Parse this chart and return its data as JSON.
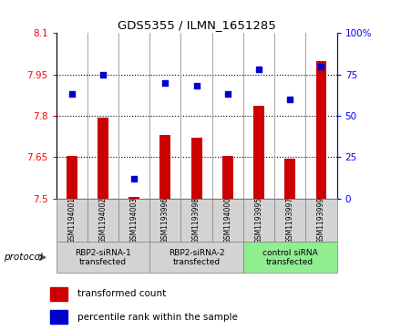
{
  "title": "GDS5355 / ILMN_1651285",
  "samples": [
    "GSM1194001",
    "GSM1194002",
    "GSM1194003",
    "GSM1193996",
    "GSM1193998",
    "GSM1194000",
    "GSM1193995",
    "GSM1193997",
    "GSM1193999"
  ],
  "bar_values": [
    7.655,
    7.795,
    7.505,
    7.73,
    7.72,
    7.655,
    7.835,
    7.645,
    8.0
  ],
  "dot_values": [
    63,
    75,
    12,
    70,
    68,
    63,
    78,
    60,
    80
  ],
  "ylim_left": [
    7.5,
    8.1
  ],
  "ylim_right": [
    0,
    100
  ],
  "yticks_left": [
    7.5,
    7.65,
    7.8,
    7.95,
    8.1
  ],
  "yticks_right": [
    0,
    25,
    50,
    75,
    100
  ],
  "bar_color": "#cc0000",
  "dot_color": "#0000cc",
  "bar_base": 7.5,
  "groups": [
    {
      "label": "RBP2-siRNA-1\ntransfected",
      "start": 0,
      "end": 3
    },
    {
      "label": "RBP2-siRNA-2\ntransfected",
      "start": 3,
      "end": 6
    },
    {
      "label": "control siRNA\ntransfected",
      "start": 6,
      "end": 9
    }
  ],
  "group_colors": [
    "#d3d3d3",
    "#d3d3d3",
    "#90ee90"
  ],
  "protocol_label": "protocol",
  "legend_bar_label": "transformed count",
  "legend_dot_label": "percentile rank within the sample",
  "plot_bg": "white",
  "ytick_left_labels": [
    "7.5",
    "7.65",
    "7.8",
    "7.95",
    "8.1"
  ],
  "ytick_right_labels": [
    "0",
    "25",
    "50",
    "75",
    "100%"
  ]
}
